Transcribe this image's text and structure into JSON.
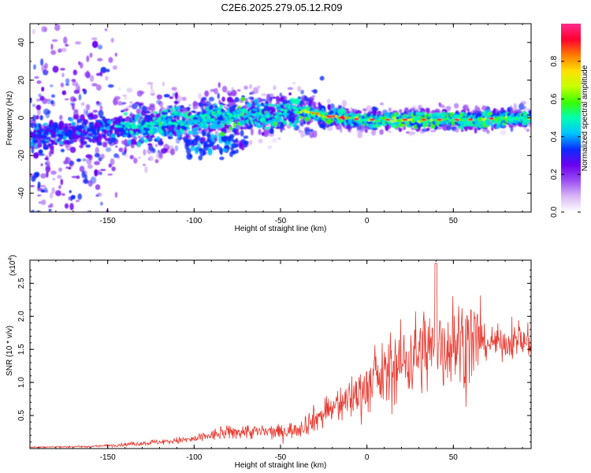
{
  "title": "C2E6.2025.279.05.12.R09",
  "chart_data": [
    {
      "type": "heatmap",
      "name": "spectrogram",
      "xlabel": "Height of straight line (km)",
      "ylabel": "Frequency (Hz)",
      "xlim": [
        -195,
        95
      ],
      "ylim": [
        -50,
        50
      ],
      "xticks": [
        -150,
        -100,
        -50,
        0,
        50
      ],
      "yticks": [
        -40,
        -20,
        0,
        20,
        40
      ],
      "ridge_centerline": [
        [
          -195,
          -9
        ],
        [
          -180,
          -8
        ],
        [
          -160,
          -7
        ],
        [
          -145,
          -5
        ],
        [
          -130,
          -4
        ],
        [
          -110,
          -2
        ],
        [
          -90,
          0
        ],
        [
          -70,
          2
        ],
        [
          -55,
          1
        ],
        [
          -45,
          4
        ],
        [
          -35,
          3
        ],
        [
          -25,
          1
        ],
        [
          -15,
          0
        ],
        [
          0,
          -1
        ],
        [
          20,
          -1
        ],
        [
          40,
          -1
        ],
        [
          60,
          -1
        ],
        [
          80,
          0
        ],
        [
          95,
          0
        ]
      ],
      "colorbar": {
        "label": "Normalized spectral amplitude",
        "range": [
          0,
          1
        ],
        "ticks": [
          "0.0",
          "0.2",
          "0.4",
          "0.6",
          "0.8"
        ],
        "colors": [
          "#ffffff",
          "#d9b8f5",
          "#9b4ef2",
          "#6a00f0",
          "#0a2cff",
          "#00c4ff",
          "#00ffb0",
          "#39ff00",
          "#c8ff00",
          "#ffe000",
          "#ff7a00",
          "#ff0030",
          "#ff2a8c"
        ]
      }
    },
    {
      "type": "line",
      "name": "snr",
      "xlabel": "Height of straight line (km)",
      "ylabel": "SNR (10 * v/v)",
      "scale_label": "(x10",
      "scale_exponent": "4",
      "xlim": [
        -195,
        95
      ],
      "ylim": [
        0,
        2.85
      ],
      "xticks": [
        -150,
        -100,
        -50,
        0,
        50
      ],
      "yticks": [
        "0.5",
        "1.0",
        "1.5",
        "2.0",
        "2.5"
      ],
      "series": [
        {
          "name": "SNR",
          "color": "#e8392f",
          "x": [
            -195,
            -160,
            -140,
            -120,
            -100,
            -90,
            -80,
            -70,
            -60,
            -50,
            -40,
            -30,
            -20,
            -10,
            0,
            10,
            20,
            30,
            40,
            50,
            60,
            70,
            80,
            90,
            95
          ],
          "y": [
            0.02,
            0.03,
            0.06,
            0.1,
            0.14,
            0.2,
            0.24,
            0.26,
            0.25,
            0.25,
            0.3,
            0.45,
            0.6,
            0.75,
            0.95,
            1.1,
            1.3,
            1.45,
            1.55,
            1.6,
            1.6,
            1.6,
            1.6,
            1.62,
            1.6
          ]
        }
      ]
    }
  ]
}
